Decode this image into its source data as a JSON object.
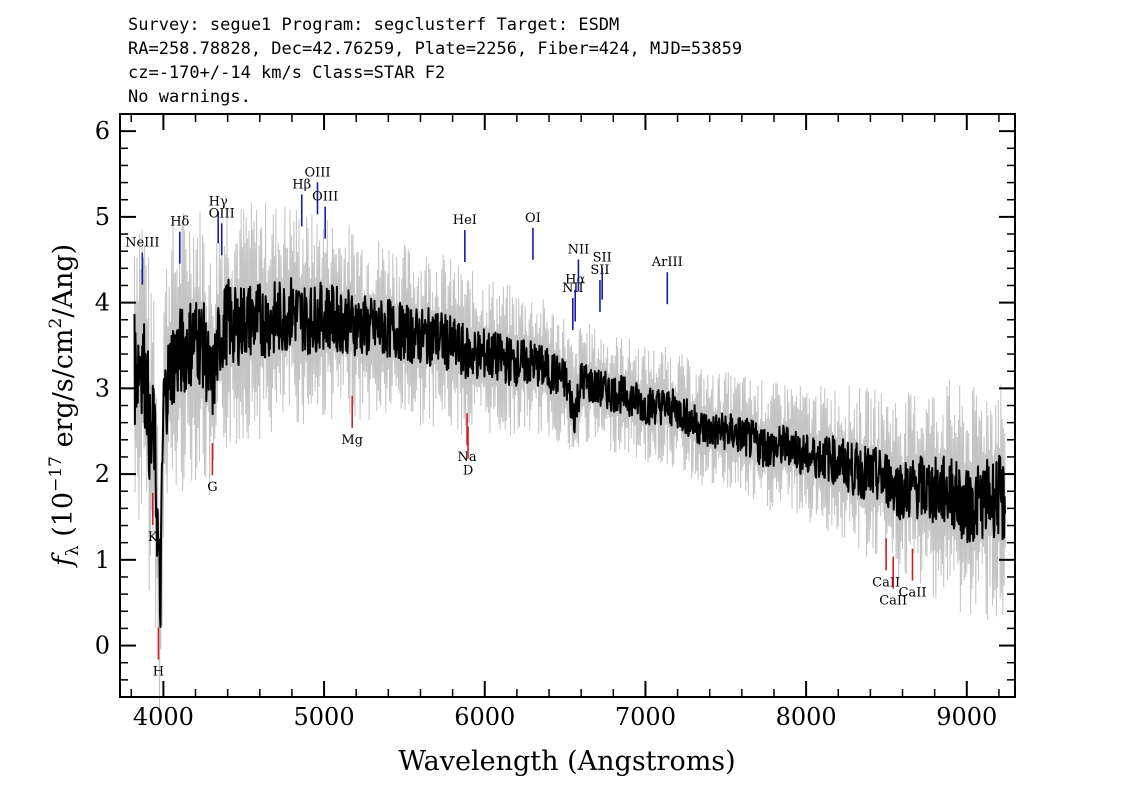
{
  "header": {
    "line1": "Survey: segue1 Program: segclusterf Target: ESDM",
    "line2": "RA=258.78828, Dec=42.76259, Plate=2256, Fiber=424, MJD=53859",
    "line3": "cz=-170+/-14 km/s Class=STAR F2",
    "line4": "No warnings."
  },
  "chart_data": {
    "type": "line",
    "xlabel": "Wavelength (Angstroms)",
    "ylabel": "f_λ (10^-17 erg/s/cm^2/Ang)",
    "xlim": [
      3730,
      9300
    ],
    "ylim": [
      -0.6,
      6.2
    ],
    "x_ticks": [
      4000,
      5000,
      6000,
      7000,
      8000,
      9000
    ],
    "y_ticks": [
      0,
      1,
      2,
      3,
      4,
      5,
      6
    ],
    "colors": {
      "flux": "#000000",
      "error_band": "#c4c4c4",
      "emission": "#1a1aa8",
      "absorption": "#d42020"
    },
    "series": [
      {
        "role": "flux",
        "x": [
          3820,
          3860,
          3900,
          3920,
          3940,
          3960,
          3980,
          4000,
          4050,
          4100,
          4150,
          4200,
          4250,
          4300,
          4350,
          4400,
          4450,
          4500,
          4600,
          4700,
          4800,
          4900,
          5000,
          5100,
          5200,
          5300,
          5400,
          5500,
          5600,
          5700,
          5800,
          5900,
          6000,
          6100,
          6200,
          6300,
          6400,
          6500,
          6560,
          6600,
          6700,
          6800,
          6900,
          7000,
          7100,
          7200,
          7300,
          7400,
          7500,
          7600,
          7700,
          7800,
          7900,
          8000,
          8100,
          8200,
          8300,
          8400,
          8500,
          8600,
          8700,
          8800,
          8900,
          9000,
          9100,
          9200,
          9240
        ],
        "y": [
          3.2,
          3.4,
          3.0,
          2.2,
          2.6,
          1.6,
          0.4,
          2.8,
          3.3,
          3.4,
          3.5,
          3.6,
          3.5,
          3.0,
          3.6,
          3.8,
          3.7,
          3.8,
          3.8,
          3.8,
          3.9,
          3.8,
          3.85,
          3.8,
          3.75,
          3.7,
          3.7,
          3.65,
          3.6,
          3.6,
          3.5,
          3.4,
          3.4,
          3.35,
          3.3,
          3.3,
          3.2,
          3.1,
          2.7,
          3.1,
          3.0,
          2.95,
          2.9,
          2.8,
          2.8,
          2.75,
          2.6,
          2.5,
          2.5,
          2.45,
          2.35,
          2.3,
          2.35,
          2.2,
          2.2,
          2.15,
          2.05,
          2.0,
          1.95,
          1.8,
          1.85,
          1.8,
          1.8,
          1.6,
          1.7,
          1.75,
          1.6
        ]
      },
      {
        "role": "error_band",
        "x": [
          3820,
          3900,
          4000,
          4100,
          4200,
          4300,
          4400,
          4500,
          4700,
          4900,
          5100,
          5300,
          5500,
          5700,
          5900,
          6100,
          6300,
          6500,
          6700,
          6900,
          7100,
          7300,
          7500,
          7700,
          7900,
          8100,
          8300,
          8500,
          8700,
          8900,
          9100,
          9240
        ],
        "y_err": [
          1.5,
          1.4,
          1.2,
          1.2,
          1.2,
          1.1,
          1.1,
          1.0,
          1.0,
          0.9,
          0.85,
          0.8,
          0.75,
          0.75,
          0.7,
          0.65,
          0.6,
          0.55,
          0.5,
          0.5,
          0.5,
          0.5,
          0.5,
          0.55,
          0.55,
          0.6,
          0.7,
          0.75,
          0.85,
          0.95,
          1.0,
          1.1
        ]
      }
    ],
    "emission_lines": [
      {
        "label": "NeIII",
        "x": 3869
      },
      {
        "label": "Hδ",
        "x": 4102
      },
      {
        "label": "Hγ",
        "x": 4341
      },
      {
        "label": "OIII",
        "x": 4363
      },
      {
        "label": "Hβ",
        "x": 4861
      },
      {
        "label": "OIII",
        "x": 4959
      },
      {
        "label": "OIII",
        "x": 5007
      },
      {
        "label": "HeI",
        "x": 5876
      },
      {
        "label": "OI",
        "x": 6300
      },
      {
        "label": "NII",
        "x": 6548
      },
      {
        "label": "Hα",
        "x": 6563
      },
      {
        "label": "NII",
        "x": 6583
      },
      {
        "label": "SII",
        "x": 6717
      },
      {
        "label": "SII",
        "x": 6731
      },
      {
        "label": "ArIII",
        "x": 7136
      }
    ],
    "absorption_lines": [
      {
        "label": "K",
        "x": 3934
      },
      {
        "label": "H",
        "x": 3969
      },
      {
        "label": "G",
        "x": 4305
      },
      {
        "label": "Mg",
        "x": 5175
      },
      {
        "label": "Na",
        "x": 5890
      },
      {
        "label": "D",
        "x": 5896
      },
      {
        "label": "CaII",
        "x": 8498
      },
      {
        "label": "CaII",
        "x": 8542
      },
      {
        "label": "CaII",
        "x": 8662
      }
    ]
  }
}
